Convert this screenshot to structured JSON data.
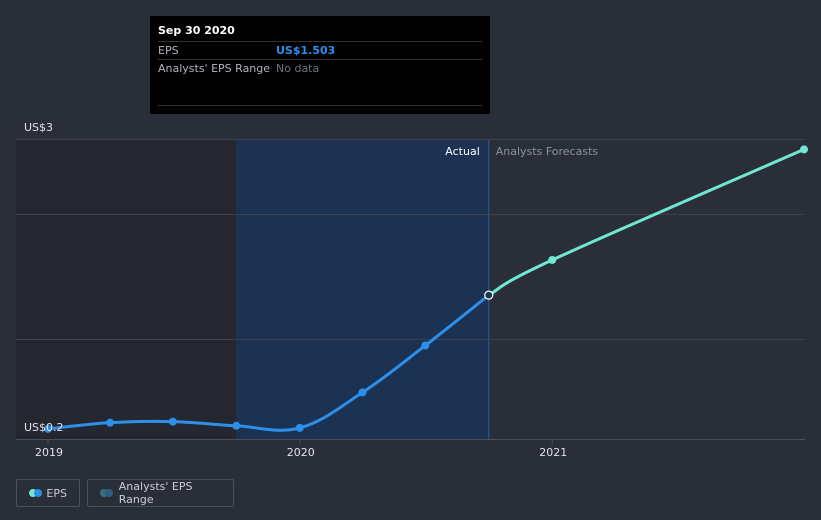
{
  "tooltip": {
    "date": "Sep 30 2020",
    "eps_label": "EPS",
    "eps_value": "US$1.503",
    "range_label": "Analysts' EPS Range",
    "range_value": "No data"
  },
  "legend": {
    "eps": "EPS",
    "range": "Analysts' EPS Range"
  },
  "colors": {
    "background": "#2a2e39",
    "actual_line": "#2d8fea",
    "forecast_line": "#6fe7d3",
    "highlight_band": "#1b3252",
    "past_band": "#242730"
  },
  "chart_data": {
    "type": "line",
    "y_axis_labels": [
      "US$3",
      "US$0.2"
    ],
    "x_tick_labels": [
      "2019",
      "2020",
      "2021"
    ],
    "ylim": [
      0.2,
      3.0
    ],
    "divider_labels": {
      "actual": "Actual",
      "forecast": "Analysts Forecasts"
    },
    "series": [
      {
        "name": "EPS",
        "points": [
          {
            "date": "2018-12-31",
            "value": 0.22
          },
          {
            "date": "2019-03-31",
            "value": 0.28
          },
          {
            "date": "2019-06-30",
            "value": 0.29
          },
          {
            "date": "2019-09-30",
            "value": 0.25
          },
          {
            "date": "2019-12-31",
            "value": 0.23
          },
          {
            "date": "2020-03-31",
            "value": 0.57
          },
          {
            "date": "2020-06-30",
            "value": 1.02
          },
          {
            "date": "2020-09-30",
            "value": 1.503
          }
        ]
      },
      {
        "name": "Analysts Forecasts",
        "points": [
          {
            "date": "2020-09-30",
            "value": 1.503
          },
          {
            "date": "2020-12-31",
            "value": 1.84
          },
          {
            "date": "2021-12-31",
            "value": 2.9
          }
        ]
      }
    ],
    "highlight_range": [
      "2019-09-30",
      "2020-09-30"
    ],
    "grid": true
  }
}
